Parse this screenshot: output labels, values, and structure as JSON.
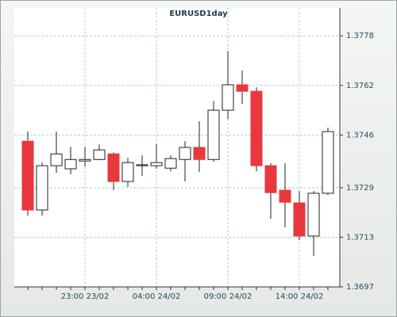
{
  "chart_data": {
    "type": "candlestick",
    "title": "EURUSD1day",
    "categories": [
      null,
      null,
      null,
      null,
      "23:00 23/02",
      null,
      null,
      null,
      null,
      "04:00 24/02",
      null,
      null,
      null,
      null,
      "09:00 24/02",
      null,
      null,
      null,
      null,
      "14:00 24/02",
      null,
      null
    ],
    "open": [
      1.3744,
      1.37218,
      1.37361,
      1.37351,
      1.37376,
      1.37381,
      1.37399,
      1.3731,
      1.37361,
      1.37361,
      1.37353,
      1.37381,
      1.3742,
      1.37381,
      1.3754,
      1.37622,
      1.37601,
      1.37361,
      1.37282,
      1.37241,
      1.37134,
      1.37272
    ],
    "high": [
      1.37471,
      1.37371,
      1.37471,
      1.37422,
      1.37422,
      1.3743,
      1.37404,
      1.37386,
      1.37394,
      1.3743,
      1.37394,
      1.3744,
      1.37504,
      1.3757,
      1.37731,
      1.37668,
      1.37614,
      1.37369,
      1.37369,
      1.37279,
      1.37279,
      1.37484
    ],
    "low": [
      1.372,
      1.372,
      1.37338,
      1.37333,
      1.37358,
      1.37379,
      1.37282,
      1.37292,
      1.37328,
      1.37351,
      1.37343,
      1.3731,
      1.37341,
      1.37374,
      1.37512,
      1.3756,
      1.37343,
      1.3719,
      1.37162,
      1.37121,
      1.3707,
      1.37266
    ],
    "close": [
      1.37218,
      1.37361,
      1.37399,
      1.37381,
      1.37381,
      1.37412,
      1.3731,
      1.37371,
      1.37364,
      1.37371,
      1.37384,
      1.3742,
      1.37381,
      1.3754,
      1.37622,
      1.37601,
      1.37361,
      1.37274,
      1.37243,
      1.37134,
      1.37272,
      1.37471
    ],
    "up_color": "#ffffff",
    "down_color": "#e8383d",
    "ylim": [
      1.3697,
      1.3787
    ],
    "yticks": [
      1.3697,
      1.3713,
      1.3729,
      1.3746,
      1.3762,
      1.3778
    ],
    "grid": true
  }
}
